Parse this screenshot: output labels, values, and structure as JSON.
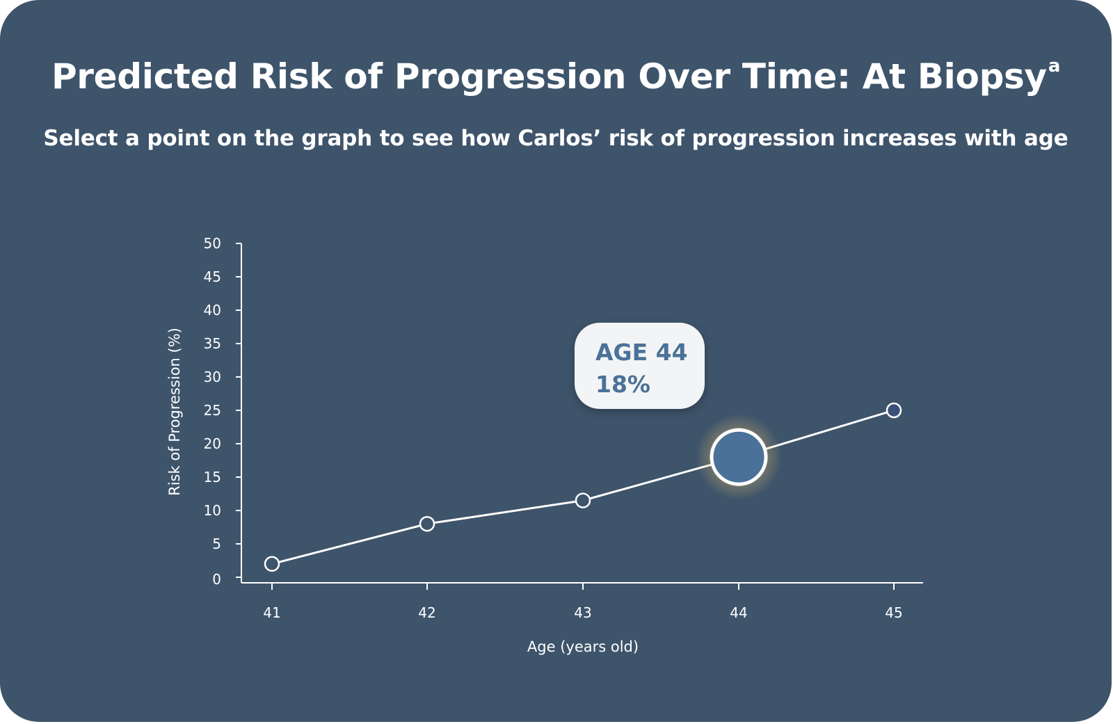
{
  "title": "Predicted Risk of Progression Over Time: At Biopsy",
  "title_superscript": "a",
  "subtitle": "Select a point on the graph to see how Carlos’ risk of progression increases with age",
  "tooltip": {
    "age_label": "AGE 44",
    "value_label": "18%"
  },
  "colors": {
    "background": "#3e546b",
    "line": "#ffffff",
    "point_fill": "#3e546b",
    "point_filled": "#3b4f7a",
    "selected_fill": "#4a7299",
    "selected_glow": "#f5d98a",
    "tooltip_bg": "#f3f4f6",
    "tooltip_text": "#4a7299"
  },
  "chart_data": {
    "type": "line",
    "xlabel": "Age (years old)",
    "ylabel": "Risk of Progression (%)",
    "x": [
      41,
      42,
      43,
      44,
      45
    ],
    "series": [
      {
        "values": [
          2,
          8,
          11.5,
          18,
          25
        ]
      }
    ],
    "x_tick_labels": [
      "41",
      "42",
      "43",
      "44",
      "45"
    ],
    "y_ticks": [
      0,
      5,
      10,
      15,
      20,
      25,
      30,
      35,
      40,
      45,
      50
    ],
    "ylim": [
      0,
      50
    ],
    "selected_x": 44,
    "filled_x": [
      45
    ],
    "grid": false,
    "legend": "none"
  }
}
